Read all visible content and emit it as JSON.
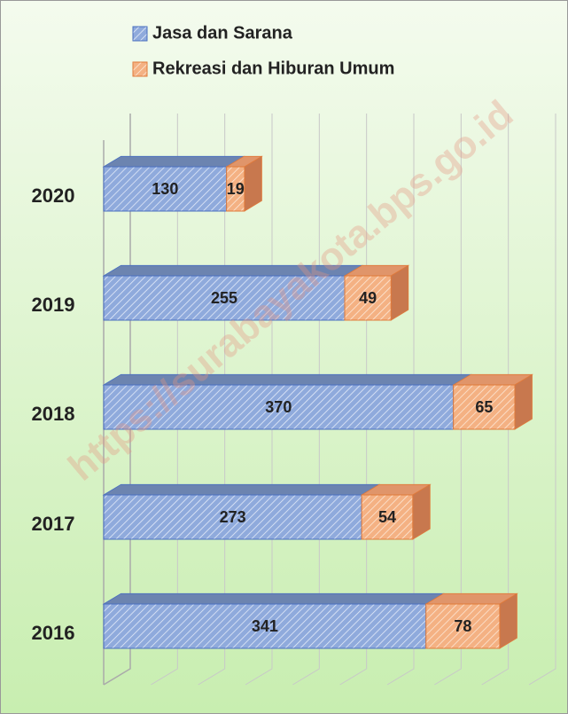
{
  "chart_data": {
    "type": "bar",
    "orientation": "horizontal",
    "stacked": true,
    "categories": [
      "2020",
      "2019",
      "2018",
      "2017",
      "2016"
    ],
    "series": [
      {
        "name": "Jasa dan Sarana",
        "color": "#8faadc",
        "values": [
          130,
          255,
          370,
          273,
          341
        ]
      },
      {
        "name": "Rekreasi dan Hiburan Umum",
        "color": "#f4b183",
        "values": [
          19,
          49,
          65,
          54,
          78
        ]
      }
    ],
    "xlim": [
      0,
      450
    ],
    "xticks": [
      0,
      50,
      100,
      150,
      200,
      250,
      300,
      350,
      400,
      450
    ],
    "grid": true,
    "watermark": "https://surabayakota.bps.go.id"
  }
}
